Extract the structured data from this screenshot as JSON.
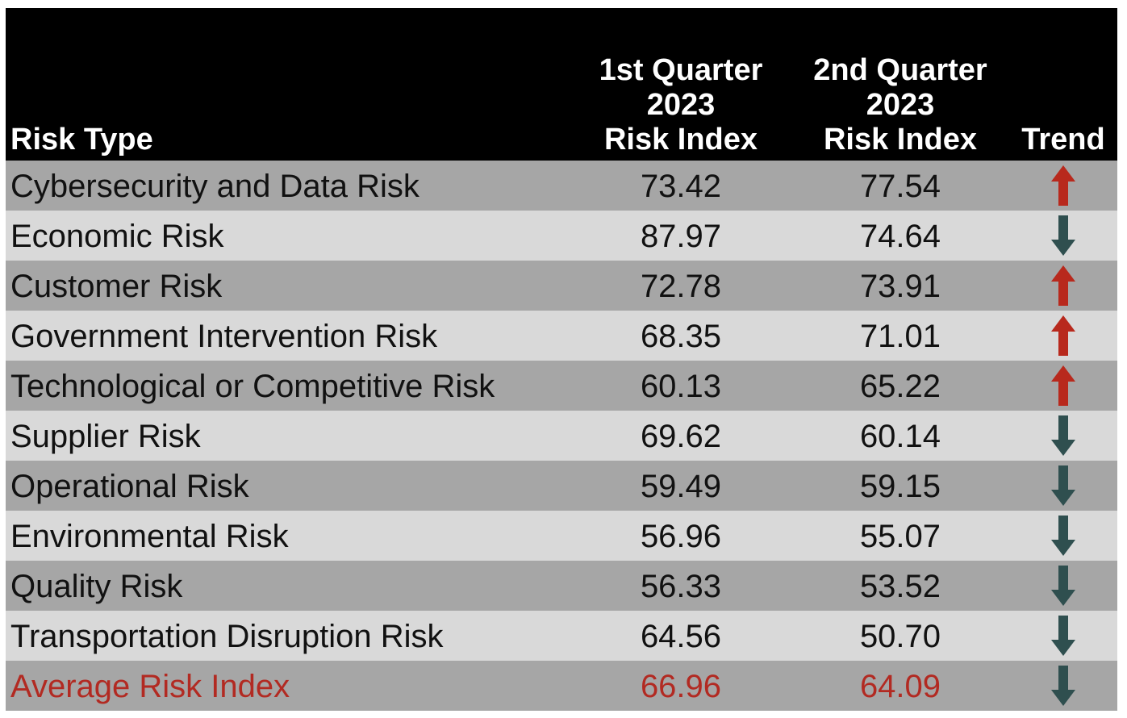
{
  "colors": {
    "header_bg": "#000000",
    "header_text": "#ffffff",
    "row_dark": "#a6a6a6",
    "row_light": "#d9d9d9",
    "up_arrow": "#b8291d",
    "down_arrow": "#2f4f4f",
    "average_text": "#b22a22"
  },
  "chart_data": {
    "type": "table",
    "columns": [
      [
        "Risk Type"
      ],
      [
        "1st Quarter",
        "2023",
        "Risk Index"
      ],
      [
        "2nd Quarter",
        "2023",
        "Risk Index"
      ],
      [
        "Trend"
      ]
    ],
    "rows": [
      {
        "risk_type": "Cybersecurity and Data Risk",
        "q1": "73.42",
        "q2": "77.54",
        "trend": "up"
      },
      {
        "risk_type": "Economic Risk",
        "q1": "87.97",
        "q2": "74.64",
        "trend": "down"
      },
      {
        "risk_type": "Customer Risk",
        "q1": "72.78",
        "q2": "73.91",
        "trend": "up"
      },
      {
        "risk_type": "Government Intervention Risk",
        "q1": "68.35",
        "q2": "71.01",
        "trend": "up"
      },
      {
        "risk_type": "Technological or Competitive Risk",
        "q1": "60.13",
        "q2": "65.22",
        "trend": "up"
      },
      {
        "risk_type": "Supplier Risk",
        "q1": "69.62",
        "q2": "60.14",
        "trend": "down"
      },
      {
        "risk_type": "Operational Risk",
        "q1": "59.49",
        "q2": "59.15",
        "trend": "down"
      },
      {
        "risk_type": "Environmental Risk",
        "q1": "56.96",
        "q2": "55.07",
        "trend": "down"
      },
      {
        "risk_type": "Quality Risk",
        "q1": "56.33",
        "q2": "53.52",
        "trend": "down"
      },
      {
        "risk_type": "Transportation Disruption Risk",
        "q1": "64.56",
        "q2": "50.70",
        "trend": "down"
      }
    ],
    "average": {
      "risk_type": "Average Risk Index",
      "q1": "66.96",
      "q2": "64.09",
      "trend": "down"
    }
  }
}
